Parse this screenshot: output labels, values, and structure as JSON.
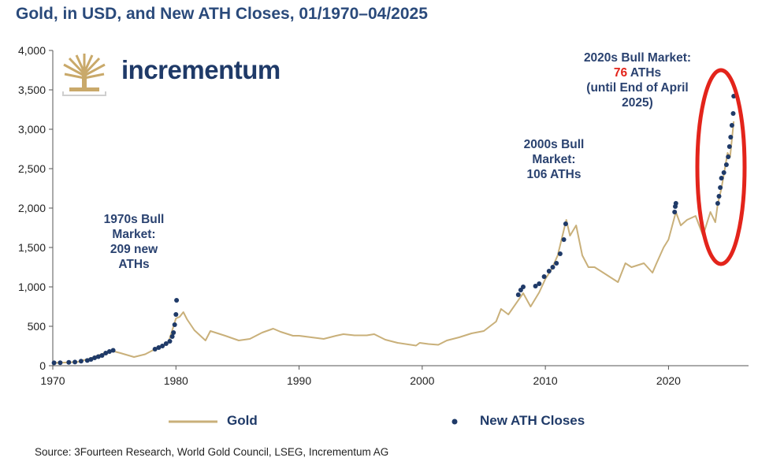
{
  "chart_data": {
    "type": "line",
    "title": "Gold, in USD, and New ATH Closes, 01/1970–04/2025",
    "xlabel": "",
    "ylabel": "",
    "xlim": [
      1970,
      2026.5
    ],
    "ylim": [
      0,
      4000
    ],
    "x_ticks": [
      1970,
      1980,
      1990,
      2000,
      2010,
      2020
    ],
    "y_ticks": [
      0,
      500,
      1000,
      1500,
      2000,
      2500,
      3000,
      3500,
      4000
    ],
    "y_tick_labels": [
      "0",
      "500",
      "1,000",
      "1,500",
      "2,000",
      "2,500",
      "3,000",
      "3,500",
      "4,000"
    ],
    "series": [
      {
        "name": "Gold",
        "color": "#c9b07a",
        "x": [
          1970,
          1971,
          1972,
          1973,
          1973.5,
          1974.2,
          1974.9,
          1975.5,
          1976.6,
          1977.5,
          1978.3,
          1978.9,
          1979.4,
          1979.8,
          1980.0,
          1980.3,
          1980.6,
          1980.9,
          1981.5,
          1982.4,
          1982.8,
          1983.2,
          1984.0,
          1985.1,
          1986.0,
          1987.0,
          1987.9,
          1988.5,
          1989.5,
          1990.0,
          1991.0,
          1992.0,
          1993.0,
          1993.6,
          1994.5,
          1995.5,
          1996.1,
          1997.0,
          1998.0,
          1999.5,
          1999.8,
          2000.5,
          2001.3,
          2002.0,
          2003.0,
          2004.0,
          2005.0,
          2006.0,
          2006.4,
          2007.0,
          2008.2,
          2008.8,
          2009.5,
          2010.0,
          2010.5,
          2011.0,
          2011.7,
          2012.0,
          2012.5,
          2013.0,
          2013.5,
          2014.0,
          2015.0,
          2015.9,
          2016.5,
          2017.0,
          2018.0,
          2018.7,
          2019.0,
          2019.6,
          2020.0,
          2020.6,
          2021.0,
          2021.5,
          2022.2,
          2022.8,
          2023.4,
          2023.8,
          2024.0,
          2024.3,
          2024.8,
          2025.0,
          2025.3
        ],
        "values": [
          35,
          40,
          48,
          90,
          120,
          160,
          185,
          160,
          110,
          145,
          210,
          245,
          300,
          500,
          600,
          620,
          680,
          590,
          450,
          320,
          440,
          420,
          380,
          320,
          340,
          420,
          470,
          430,
          380,
          380,
          360,
          340,
          380,
          400,
          385,
          385,
          400,
          330,
          290,
          255,
          290,
          275,
          265,
          320,
          360,
          410,
          440,
          560,
          720,
          650,
          920,
          750,
          930,
          1100,
          1220,
          1400,
          1850,
          1650,
          1780,
          1400,
          1250,
          1250,
          1150,
          1060,
          1300,
          1250,
          1300,
          1180,
          1290,
          1500,
          1600,
          1950,
          1780,
          1850,
          1900,
          1650,
          1950,
          1820,
          2050,
          2250,
          2700,
          2650,
          3100
        ]
      },
      {
        "name": "New ATH Closes",
        "color": "#1f3a68",
        "x": [
          1970.1,
          1970.6,
          1971.3,
          1971.8,
          1972.3,
          1972.8,
          1973.1,
          1973.4,
          1973.7,
          1974.0,
          1974.3,
          1974.6,
          1974.9,
          1978.3,
          1978.6,
          1978.9,
          1979.2,
          1979.5,
          1979.7,
          1979.8,
          1979.9,
          1980.0,
          1980.05,
          2007.8,
          2008.0,
          2008.2,
          2009.2,
          2009.5,
          2009.9,
          2010.3,
          2010.6,
          2010.9,
          2011.2,
          2011.5,
          2011.65,
          2020.5,
          2020.55,
          2020.6,
          2024.0,
          2024.1,
          2024.2,
          2024.3,
          2024.5,
          2024.7,
          2024.85,
          2024.95,
          2025.05,
          2025.15,
          2025.25,
          2025.3
        ],
        "values": [
          36,
          38,
          42,
          46,
          58,
          66,
          80,
          100,
          115,
          130,
          160,
          180,
          195,
          210,
          230,
          250,
          280,
          310,
          370,
          420,
          520,
          650,
          830,
          900,
          960,
          1000,
          1010,
          1040,
          1130,
          1200,
          1250,
          1300,
          1420,
          1600,
          1800,
          1950,
          2020,
          2060,
          2060,
          2150,
          2260,
          2380,
          2450,
          2550,
          2650,
          2780,
          2900,
          3050,
          3200,
          3420
        ]
      }
    ],
    "annotations": [
      {
        "lines": [
          "1970s Bull",
          "Market:",
          "209 new",
          "ATHs"
        ]
      },
      {
        "lines": [
          "2000s Bull",
          "Market:",
          "106 ATHs"
        ]
      },
      {
        "line1": "2020s Bull Market:",
        "count": "76",
        "count_suffix": " ATHs",
        "line3": "(until End of April",
        "line4": "2025)"
      }
    ],
    "legend": {
      "gold": "Gold",
      "ath": "New ATH Closes"
    }
  },
  "brand": "incrementum",
  "source": "Source: 3Fourteen Research, World Gold Council, LSEG, Incrementum AG",
  "colors": {
    "title": "#2a4a7b",
    "gold": "#c9b07a",
    "ath": "#1f3a68",
    "highlight": "#e3241b"
  }
}
